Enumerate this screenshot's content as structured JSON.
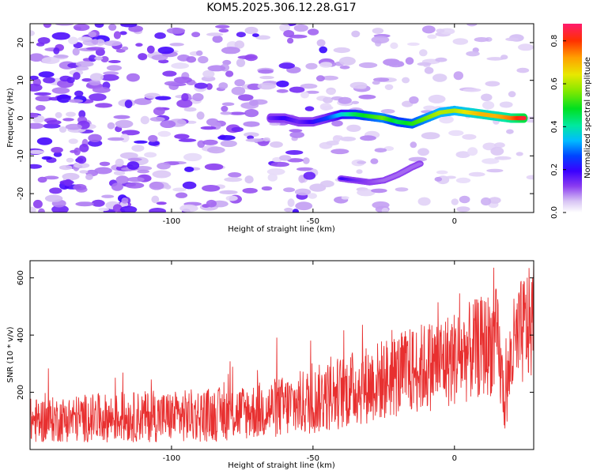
{
  "title": "KOM5.2025.306.12.28.G17",
  "colors": {
    "snr_line": "#e83030",
    "ridge_dark": "#4a00e8"
  },
  "chart_data": [
    {
      "type": "heatmap",
      "xlabel": "Height of straight line (km)",
      "ylabel": "Frequency (Hz)",
      "xlim": [
        -150,
        28
      ],
      "ylim": [
        -25,
        25
      ],
      "xticks": [
        -100,
        -50,
        0
      ],
      "xtick_labels": [
        "-100",
        "-50",
        "0"
      ],
      "yticks": [
        -20,
        -10,
        0,
        10,
        20
      ],
      "ytick_labels": [
        "-20",
        "-10",
        "0",
        "10",
        "20"
      ],
      "colorbar": {
        "label": "Normalized spectral amplitude",
        "range": [
          0,
          0.88
        ],
        "ticks": [
          0.0,
          0.2,
          0.4,
          0.6,
          0.8
        ],
        "tick_labels": [
          "0.0",
          "0.2",
          "0.4",
          "0.6",
          "0.8"
        ]
      },
      "ridge": {
        "x": [
          -65,
          -60,
          -55,
          -50,
          -45,
          -40,
          -35,
          -30,
          -25,
          -20,
          -15,
          -10,
          -5,
          0,
          5,
          10,
          15,
          20,
          25
        ],
        "y": [
          0,
          0,
          -1,
          -1,
          0,
          1,
          1,
          0.5,
          0,
          -1,
          -1.5,
          0,
          1.5,
          2,
          1.5,
          1,
          0.5,
          0,
          0
        ],
        "amplitude": [
          0.15,
          0.2,
          0.15,
          0.2,
          0.25,
          0.35,
          0.45,
          0.5,
          0.55,
          0.45,
          0.5,
          0.55,
          0.6,
          0.6,
          0.65,
          0.7,
          0.7,
          0.75,
          0.85
        ]
      },
      "secondary_ridge": {
        "x": [
          -40,
          -35,
          -30,
          -25,
          -20,
          -15,
          -12
        ],
        "y": [
          -16,
          -16.5,
          -17,
          -16.5,
          -15,
          -13,
          -12
        ],
        "amplitude": [
          0.2,
          0.15,
          0.12,
          0.1,
          0.1,
          0.1,
          0.1
        ]
      }
    },
    {
      "type": "line",
      "xlabel": "Height of straight line (km)",
      "ylabel": "SNR (10 * v/v)",
      "xlim": [
        -150,
        28
      ],
      "ylim": [
        0,
        660
      ],
      "xticks": [
        -100,
        -50,
        0
      ],
      "xtick_labels": [
        "-100",
        "-50",
        "0"
      ],
      "yticks": [
        200,
        400,
        600
      ],
      "ytick_labels": [
        "200",
        "400",
        "600"
      ],
      "series": [
        {
          "name": "SNR",
          "x": [
            -150,
            -140,
            -130,
            -120,
            -110,
            -100,
            -90,
            -80,
            -70,
            -60,
            -50,
            -40,
            -30,
            -20,
            -10,
            0,
            10,
            15,
            18,
            20,
            25,
            28
          ],
          "mean": [
            100,
            105,
            110,
            110,
            115,
            115,
            120,
            125,
            135,
            150,
            170,
            200,
            230,
            260,
            290,
            320,
            360,
            380,
            150,
            330,
            430,
            440
          ],
          "spread": [
            80,
            80,
            85,
            85,
            90,
            90,
            95,
            95,
            100,
            110,
            120,
            130,
            140,
            150,
            160,
            170,
            180,
            190,
            100,
            180,
            200,
            200
          ]
        }
      ]
    }
  ]
}
